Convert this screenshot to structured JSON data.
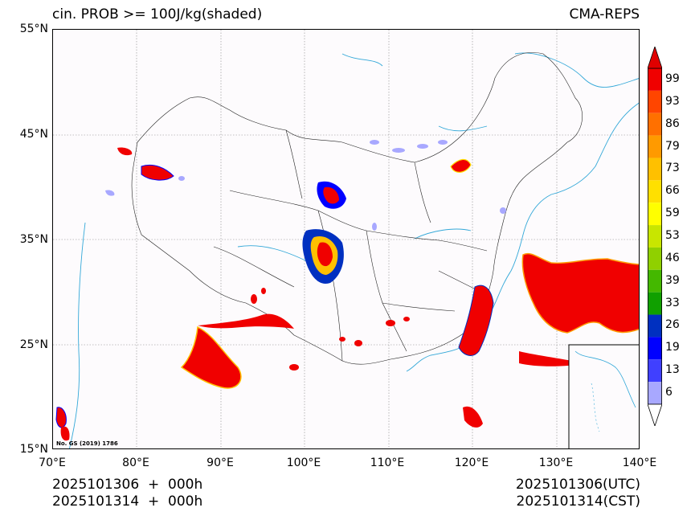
{
  "header": {
    "title": "cin. PROB >= 100J/kg(shaded)",
    "model": "CMA-REPS"
  },
  "axes": {
    "lat_labels": [
      "55°N",
      "45°N",
      "35°N",
      "25°N",
      "15°N"
    ],
    "lon_labels": [
      "70°E",
      "80°E",
      "90°E",
      "100°E",
      "110°E",
      "120°E",
      "130°E",
      "140°E"
    ]
  },
  "colorbar": {
    "levels": [
      "99",
      "93",
      "86",
      "79",
      "73",
      "66",
      "59",
      "53",
      "46",
      "39",
      "33",
      "26",
      "19",
      "13",
      "6"
    ],
    "colors": [
      "#f00000",
      "#ff4500",
      "#ff7000",
      "#ff9a00",
      "#ffc000",
      "#ffe000",
      "#ffff00",
      "#c8e600",
      "#90d000",
      "#44b800",
      "#10a000",
      "#0030c0",
      "#0000ff",
      "#4040ff",
      "#a8a8ff"
    ],
    "over_color": "#e00000",
    "under_color": "#ffffff"
  },
  "map": {
    "review_number": "No. GS (2019) 1786",
    "coast_color": "#33a8d8",
    "grid_color": "#888888"
  },
  "footer": {
    "init_utc": "2025101306  +  000h",
    "init_cst": "2025101314  +  000h",
    "valid_utc": "2025101306(UTC)",
    "valid_cst": "2025101314(CST)"
  }
}
